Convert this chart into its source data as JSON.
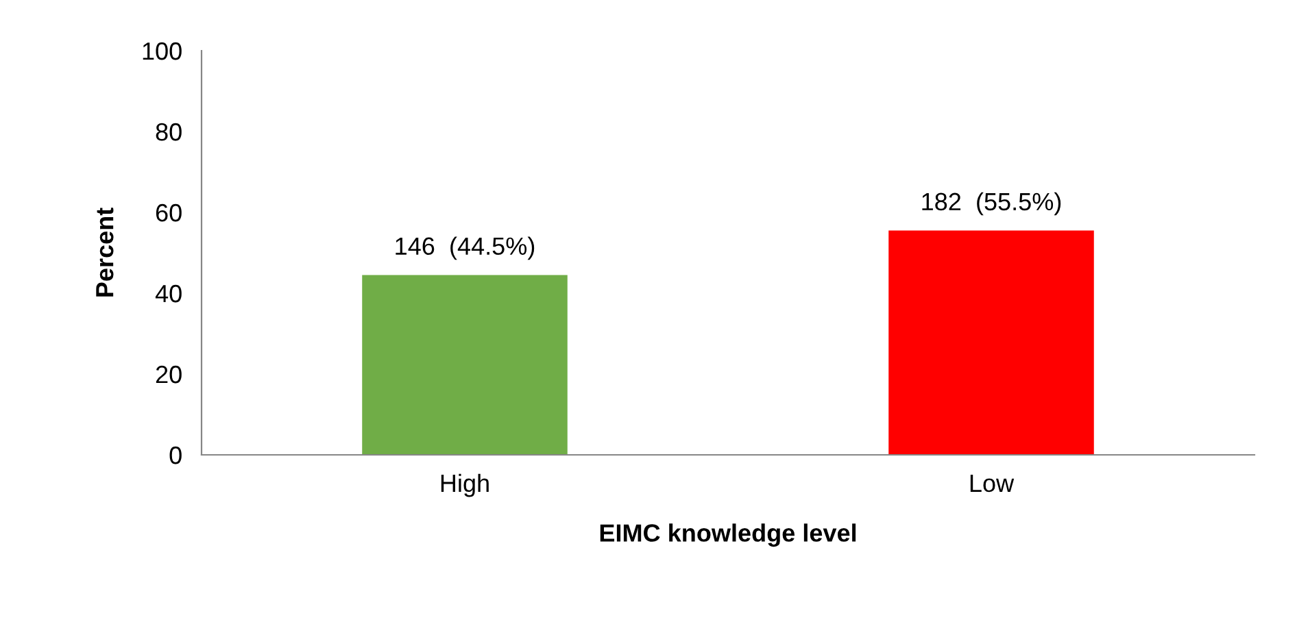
{
  "chart_data": {
    "type": "bar",
    "xlabel": "EIMC knowledge level",
    "ylabel": "Percent",
    "categories": [
      "High",
      "Low"
    ],
    "values": [
      44.5,
      55.5
    ],
    "colors": [
      "#70ad47",
      "#ff0000"
    ],
    "value_labels": [
      "146  (44.5%)",
      "182  (55.5%)"
    ],
    "ylim": [
      0,
      100
    ],
    "yticks": [
      0,
      20,
      40,
      60,
      80,
      100
    ],
    "grid": false
  }
}
